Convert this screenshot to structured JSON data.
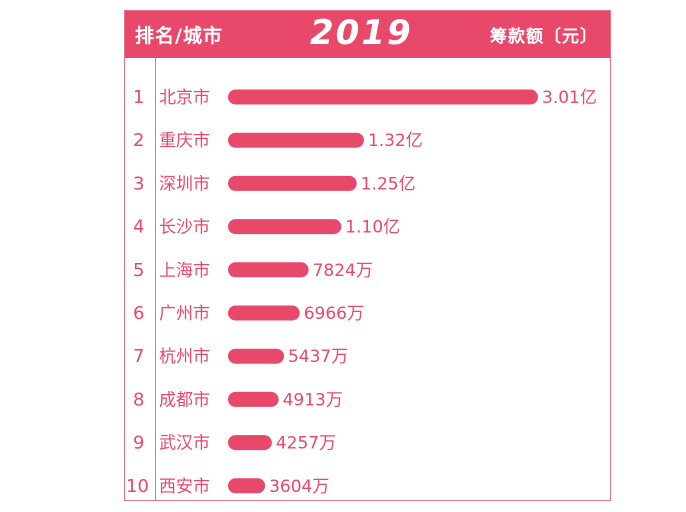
{
  "header": {
    "left": "排名/城市",
    "year": "2019",
    "right": "筹款额〔元〕"
  },
  "colors": {
    "accent": "#e8486a",
    "border": "#e8748a"
  },
  "chart_data": {
    "type": "bar",
    "orientation": "horizontal",
    "unit": "元",
    "categories": [
      "北京市",
      "重庆市",
      "深圳市",
      "长沙市",
      "上海市",
      "广州市",
      "杭州市",
      "成都市",
      "武汉市",
      "西安市"
    ],
    "ranks": [
      "1",
      "2",
      "3",
      "4",
      "5",
      "6",
      "7",
      "8",
      "9",
      "10"
    ],
    "values": [
      301000000,
      132000000,
      125000000,
      110000000,
      78240000,
      69660000,
      54370000,
      49130000,
      42570000,
      36040000
    ],
    "value_labels": [
      "3.01亿",
      "1.32亿",
      "1.25亿",
      "1.10亿",
      "7824万",
      "6966万",
      "5437万",
      "4913万",
      "4257万",
      "3604万"
    ]
  }
}
